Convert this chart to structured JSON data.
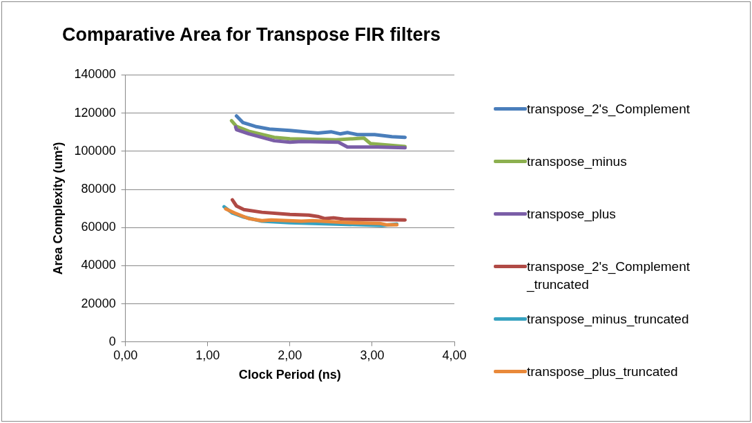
{
  "chart_data": {
    "type": "line",
    "title": "Comparative Area for Transpose FIR filters",
    "xlabel": "Clock Period (ns)",
    "ylabel": "Area Complexity (um²)",
    "xlim": [
      0,
      4
    ],
    "xticks": [
      {
        "value": 0,
        "label": "0,00"
      },
      {
        "value": 1,
        "label": "1,00"
      },
      {
        "value": 2,
        "label": "2,00"
      },
      {
        "value": 3,
        "label": "3,00"
      },
      {
        "value": 4,
        "label": "4,00"
      }
    ],
    "ylim": [
      0,
      140000
    ],
    "yticks": [
      0,
      20000,
      40000,
      60000,
      80000,
      100000,
      120000,
      140000
    ],
    "grid": "y",
    "legend": "right",
    "marker": "none",
    "line_style": "solid",
    "series": [
      {
        "name": "transpose_2's_Complement",
        "color": "#4a7ebb",
        "x": [
          1.35,
          1.43,
          1.58,
          1.75,
          2.0,
          2.34,
          2.5,
          2.61,
          2.7,
          2.82,
          3.03,
          3.24,
          3.4
        ],
        "values": [
          118500,
          115000,
          113000,
          111600,
          110900,
          109500,
          110200,
          109100,
          109800,
          108700,
          108700,
          107600,
          107300
        ]
      },
      {
        "name": "transpose_minus",
        "color": "#8cb04f",
        "x": [
          1.29,
          1.35,
          1.5,
          1.81,
          2.0,
          2.56,
          2.9,
          2.98,
          3.18,
          3.4
        ],
        "values": [
          116000,
          113000,
          110500,
          107300,
          106500,
          106000,
          106900,
          104000,
          103300,
          102500
        ]
      },
      {
        "name": "transpose_plus",
        "color": "#7b5ea7",
        "x": [
          1.34,
          1.35,
          1.5,
          1.81,
          2.0,
          2.14,
          2.59,
          2.7,
          3.07,
          3.4
        ],
        "values": [
          112700,
          111300,
          109100,
          105500,
          104700,
          105100,
          104700,
          102200,
          102200,
          101800
        ]
      },
      {
        "name": "transpose_2's_Complement_truncated",
        "color": "#b04a45",
        "x": [
          1.3,
          1.35,
          1.44,
          1.66,
          2.0,
          2.23,
          2.34,
          2.42,
          2.53,
          2.65,
          3.4
        ],
        "values": [
          74500,
          71300,
          69400,
          68000,
          66900,
          66500,
          65800,
          64700,
          65100,
          64400,
          64000
        ]
      },
      {
        "name": "transpose_minus_truncated",
        "color": "#37a2c0",
        "x": [
          1.2,
          1.3,
          1.44,
          1.66,
          2.0,
          2.56,
          3.12,
          3.3
        ],
        "values": [
          70900,
          67600,
          65500,
          63300,
          62500,
          61800,
          61100,
          61800
        ]
      },
      {
        "name": "transpose_plus_truncated",
        "color": "#e9893a",
        "x": [
          1.22,
          1.33,
          1.5,
          1.66,
          1.77,
          2.14,
          2.28,
          2.73,
          3.09,
          3.18,
          3.3
        ],
        "values": [
          69800,
          67600,
          64700,
          63600,
          64000,
          63300,
          63600,
          62500,
          62200,
          61400,
          61400
        ]
      }
    ]
  }
}
